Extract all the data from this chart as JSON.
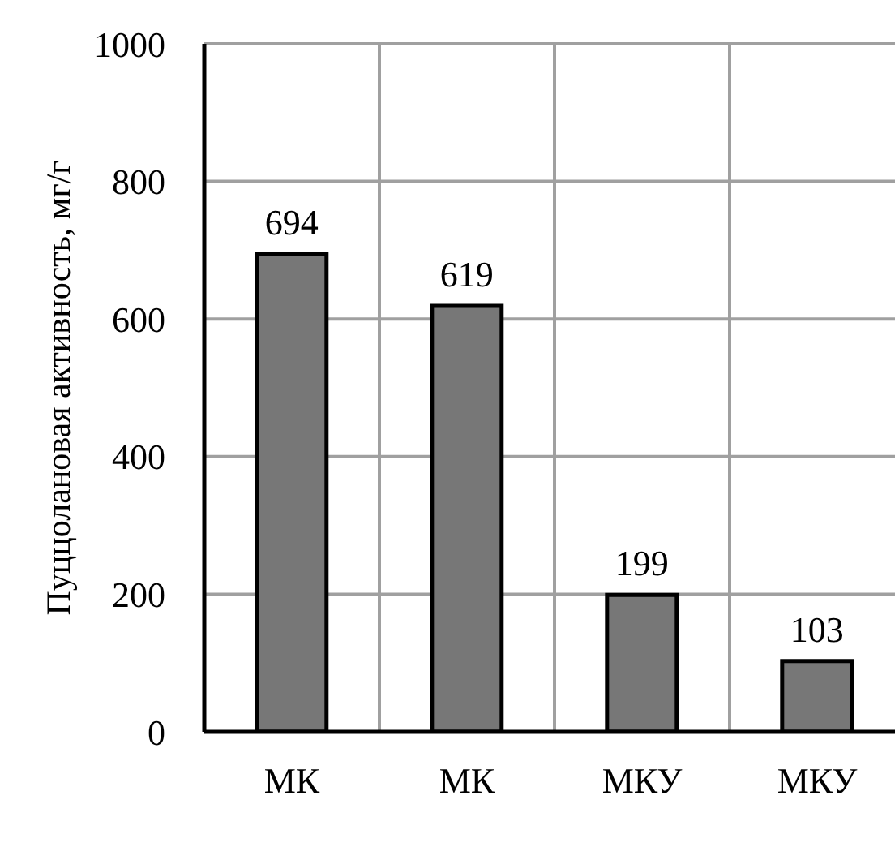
{
  "chart_data": {
    "type": "bar",
    "ylabel": "Пуццолановая активность, мг/г",
    "categories": [
      "МК",
      "МК",
      "МКУ",
      "МКУ"
    ],
    "values": [
      694,
      619,
      199,
      103
    ],
    "color": "#777777",
    "ylim": [
      0,
      1000
    ],
    "yticks": [
      0,
      200,
      400,
      600,
      800,
      1000
    ],
    "grid": true,
    "data_labels": true
  }
}
